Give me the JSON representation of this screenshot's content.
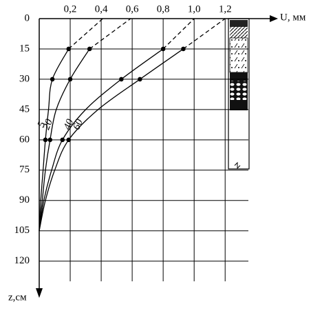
{
  "chart_data": {
    "type": "line",
    "x_label": "U, мм",
    "y_label": "z,см",
    "y": [
      105,
      90,
      75,
      60,
      45,
      30,
      15,
      0
    ],
    "series": [
      {
        "name": "5",
        "color": "#000",
        "values": [
          0,
          0.01,
          0.025,
          0.04,
          0.06,
          0.085,
          0.19,
          0.41
        ]
      },
      {
        "name": "20",
        "color": "#000",
        "values": [
          0,
          0.02,
          0.04,
          0.07,
          0.11,
          0.2,
          0.325,
          0.59
        ]
      },
      {
        "name": "40",
        "color": "#000",
        "values": [
          0,
          0.03,
          0.08,
          0.15,
          0.3,
          0.53,
          0.8,
          1.0
        ]
      },
      {
        "name": "60",
        "color": "#000",
        "values": [
          0,
          0.04,
          0.1,
          0.19,
          0.38,
          0.65,
          0.93,
          1.2
        ]
      }
    ],
    "markers": [
      60,
      30,
      15
    ],
    "dashed_above": 15,
    "xlim": [
      0,
      1.35
    ],
    "ylim": [
      0,
      130
    ],
    "y_inverted": true,
    "xticks": [
      {
        "value": 0.2,
        "label": "0,2"
      },
      {
        "value": 0.4,
        "label": "0,4"
      },
      {
        "value": 0.6,
        "label": "0,6"
      },
      {
        "value": 0.8,
        "label": "0,8"
      },
      {
        "value": 1.0,
        "label": "1,0"
      },
      {
        "value": 1.2,
        "label": "1,2"
      }
    ],
    "yticks": [
      0,
      15,
      30,
      45,
      60,
      75,
      90,
      105,
      120
    ],
    "grid": true
  }
}
